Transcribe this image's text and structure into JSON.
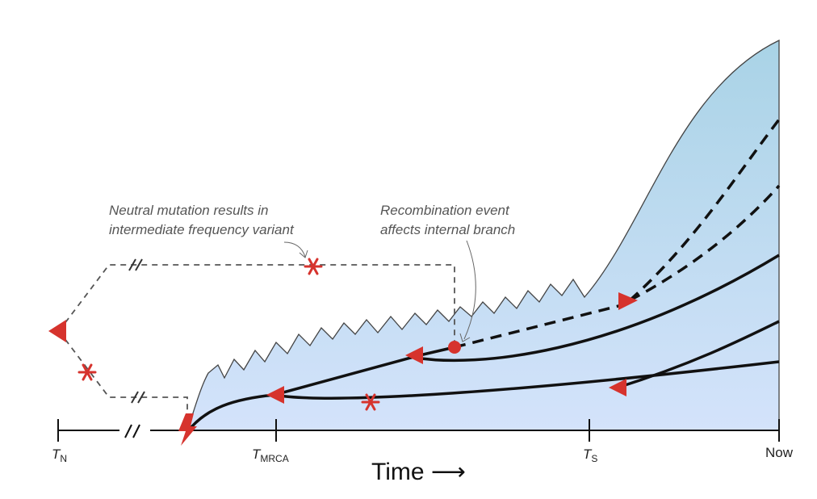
{
  "colors": {
    "population_top": "#a9d3e6",
    "population_bottom": "#d4e3fb",
    "population_outline": "#444444",
    "marker": "#d6332d",
    "lineage": "#111111",
    "neutral_lineage": "#555555"
  },
  "annotations": {
    "mutation_line1": "Neutral mutation results in",
    "mutation_line2": "intermediate frequency variant",
    "recombination_line1": "Recombination event",
    "recombination_line2": "affects internal branch"
  },
  "axis": {
    "tn_main": "T",
    "tn_sub": "N",
    "tmrca_main": "T",
    "tmrca_sub": "MRCA",
    "ts_main": "T",
    "ts_sub": "S",
    "now_label": "Now",
    "title": "Time ⟶"
  },
  "icons": {
    "origin": "lightning-bolt-icon",
    "mutation": "asterisk-icon",
    "coalescence": "triangle-arrow-icon",
    "recombination": "dot-icon"
  }
}
